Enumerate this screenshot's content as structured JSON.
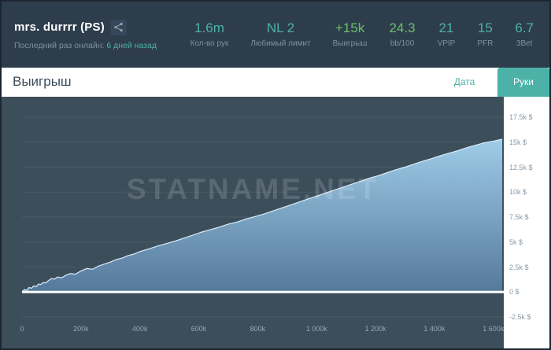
{
  "header": {
    "player_name": "mrs. durrrr (PS)",
    "last_online_label": "Последний раз онлайн:",
    "last_online_value": "6 дней назад",
    "stats": [
      {
        "value": "1.6m",
        "label": "Кол-во рук",
        "color": "teal"
      },
      {
        "value": "NL 2",
        "label": "Любимый лимит",
        "color": "teal"
      },
      {
        "value": "+15k",
        "label": "Выигрыш",
        "color": "green"
      },
      {
        "value": "24.3",
        "label": "bb/100",
        "color": "green"
      },
      {
        "value": "21",
        "label": "VPIP",
        "color": "teal"
      },
      {
        "value": "15",
        "label": "PFR",
        "color": "teal"
      },
      {
        "value": "6.7",
        "label": "3Bet",
        "color": "teal"
      }
    ]
  },
  "panel": {
    "title": "Выигрыш",
    "tabs": [
      {
        "label": "Дата",
        "active": false
      },
      {
        "label": "Руки",
        "active": true
      }
    ]
  },
  "watermark": "STATNAME.NET",
  "colors": {
    "teal": "#4cb2a8",
    "green": "#6abf69",
    "header_bg": "#2e3d4c",
    "chart_bg": "#3d4e5b"
  },
  "chart_data": {
    "type": "area",
    "title": "Выигрыш",
    "legend": "none",
    "grid": "horizontal",
    "xlabel": "hands",
    "ylabel": "winnings $",
    "xlim": [
      0,
      1630000
    ],
    "ylim": [
      -2500,
      17500
    ],
    "x_ticks": [
      "0",
      "200k",
      "400k",
      "600k",
      "800k",
      "1 000k",
      "1 200k",
      "1 400k",
      "1 600k"
    ],
    "x_tick_values": [
      0,
      200000,
      400000,
      600000,
      800000,
      1000000,
      1200000,
      1400000,
      1600000
    ],
    "y_ticks": [
      "-2.5k $",
      "0 $",
      "2.5k $",
      "5k $",
      "7.5k $",
      "10k $",
      "12.5k $",
      "15k $",
      "17.5k $"
    ],
    "y_tick_values": [
      -2500,
      0,
      2500,
      5000,
      7500,
      10000,
      12500,
      15000,
      17500
    ],
    "area_color_top": "#a9d8f3",
    "area_color_bottom": "#56799b",
    "line_color": "#d8edfb",
    "zero_line_color": "#ffffff",
    "points": [
      [
        0,
        0
      ],
      [
        8000,
        250
      ],
      [
        16000,
        150
      ],
      [
        24000,
        450
      ],
      [
        32000,
        380
      ],
      [
        40000,
        620
      ],
      [
        48000,
        540
      ],
      [
        56000,
        800
      ],
      [
        64000,
        760
      ],
      [
        72000,
        950
      ],
      [
        80000,
        900
      ],
      [
        90000,
        1150
      ],
      [
        100000,
        1350
      ],
      [
        110000,
        1280
      ],
      [
        120000,
        1500
      ],
      [
        135000,
        1430
      ],
      [
        150000,
        1700
      ],
      [
        165000,
        1850
      ],
      [
        180000,
        1780
      ],
      [
        200000,
        2100
      ],
      [
        220000,
        2350
      ],
      [
        240000,
        2280
      ],
      [
        260000,
        2600
      ],
      [
        280000,
        2800
      ],
      [
        300000,
        3000
      ],
      [
        320000,
        3250
      ],
      [
        340000,
        3400
      ],
      [
        360000,
        3650
      ],
      [
        380000,
        3800
      ],
      [
        400000,
        4050
      ],
      [
        430000,
        4300
      ],
      [
        460000,
        4600
      ],
      [
        490000,
        4850
      ],
      [
        520000,
        5100
      ],
      [
        550000,
        5400
      ],
      [
        580000,
        5700
      ],
      [
        610000,
        6000
      ],
      [
        640000,
        6250
      ],
      [
        670000,
        6500
      ],
      [
        700000,
        6800
      ],
      [
        730000,
        7000
      ],
      [
        760000,
        7300
      ],
      [
        790000,
        7550
      ],
      [
        820000,
        7800
      ],
      [
        850000,
        8100
      ],
      [
        880000,
        8400
      ],
      [
        910000,
        8700
      ],
      [
        940000,
        9000
      ],
      [
        970000,
        9300
      ],
      [
        1000000,
        9600
      ],
      [
        1030000,
        9900
      ],
      [
        1060000,
        10200
      ],
      [
        1090000,
        10500
      ],
      [
        1120000,
        10800
      ],
      [
        1150000,
        11100
      ],
      [
        1180000,
        11400
      ],
      [
        1210000,
        11650
      ],
      [
        1240000,
        11950
      ],
      [
        1270000,
        12250
      ],
      [
        1300000,
        12500
      ],
      [
        1330000,
        12800
      ],
      [
        1360000,
        13100
      ],
      [
        1390000,
        13350
      ],
      [
        1420000,
        13650
      ],
      [
        1450000,
        13900
      ],
      [
        1480000,
        14150
      ],
      [
        1510000,
        14450
      ],
      [
        1540000,
        14700
      ],
      [
        1570000,
        14950
      ],
      [
        1600000,
        15100
      ],
      [
        1630000,
        15300
      ]
    ]
  }
}
